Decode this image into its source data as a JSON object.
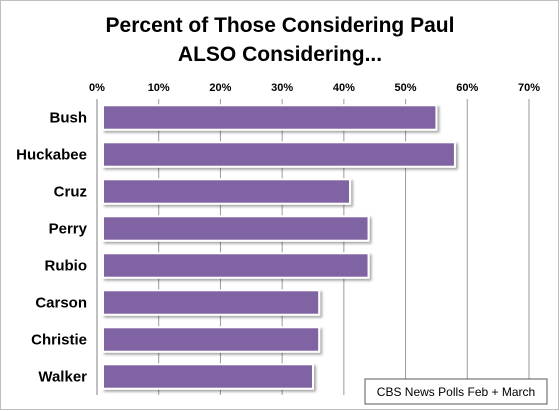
{
  "chart_data": {
    "type": "bar",
    "orientation": "horizontal",
    "title_lines": [
      "Percent of Those Considering Paul",
      "ALSO Considering..."
    ],
    "categories": [
      "Bush",
      "Huckabee",
      "Cruz",
      "Perry",
      "Rubio",
      "Carson",
      "Christie",
      "Walker"
    ],
    "values": [
      55,
      58,
      41,
      44,
      44,
      36,
      36,
      35
    ],
    "xlim": [
      0,
      70
    ],
    "xticks": [
      "0%",
      "10%",
      "20%",
      "30%",
      "40%",
      "50%",
      "60%",
      "70%"
    ],
    "xlabel": "",
    "ylabel": "",
    "grid": true,
    "bar_color": "#8064a2",
    "note": "CBS News Polls Feb + March"
  }
}
